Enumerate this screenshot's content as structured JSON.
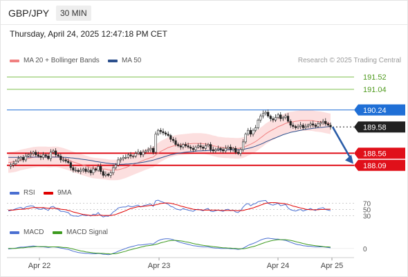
{
  "header": {
    "pair": "GBP/JPY",
    "timeframe": "30 MIN"
  },
  "timestamp": "Thursday, April 24, 2025 12:47:18 PM CET",
  "credit": "Research © 2025 Trading Central",
  "legend_main": [
    {
      "label": "MA 20 + Bollinger Bands",
      "color": "#f08080"
    },
    {
      "label": "MA 50",
      "color": "#2b4f8c"
    }
  ],
  "legend_rsi": [
    {
      "label": "RSI",
      "color": "#4a6fd1"
    },
    {
      "label": "9MA",
      "color": "#e00000"
    }
  ],
  "legend_macd": [
    {
      "label": "MACD",
      "color": "#4a6fd1"
    },
    {
      "label": "MACD Signal",
      "color": "#3c9a1e"
    }
  ],
  "chart_data": {
    "type": "candlestick",
    "instrument": "GBP/JPY",
    "interval": "30 MIN",
    "x_ticks": [
      "Apr 22",
      "Apr 23",
      "Apr 24",
      "Apr 25"
    ],
    "ylim": [
      187.6,
      191.9
    ],
    "current_price": 189.58,
    "levels": [
      {
        "value": 191.52,
        "label": "191.52",
        "kind": "resistance",
        "color": "#7bbf4a",
        "text_color": "#4f9a1e",
        "filled": false
      },
      {
        "value": 191.04,
        "label": "191.04",
        "kind": "resistance",
        "color": "#7bbf4a",
        "text_color": "#4f9a1e",
        "filled": false
      },
      {
        "value": 190.24,
        "label": "190.24",
        "kind": "pivot",
        "color": "#1f6fd6",
        "text_color": "#ffffff",
        "filled": true
      },
      {
        "value": 189.58,
        "label": "189.58",
        "kind": "last",
        "color": "#222222",
        "text_color": "#ffffff",
        "filled": true
      },
      {
        "value": 188.56,
        "label": "188.56",
        "kind": "support",
        "color": "#e0101a",
        "text_color": "#ffffff",
        "filled": true
      },
      {
        "value": 188.09,
        "label": "188.09",
        "kind": "support",
        "color": "#e0101a",
        "text_color": "#ffffff",
        "filled": true
      }
    ],
    "series": [
      {
        "name": "Price",
        "values": [
          188.05,
          188.1,
          188.15,
          188.25,
          188.35,
          188.4,
          188.3,
          188.45,
          188.5,
          188.55,
          188.6,
          188.5,
          188.45,
          188.4,
          188.5,
          188.45,
          188.35,
          188.6,
          188.65,
          188.5,
          188.45,
          188.3,
          188.3,
          188.25,
          188.2,
          188.0,
          187.9,
          187.9,
          187.85,
          187.9,
          187.95,
          187.85,
          187.9,
          187.8,
          187.95,
          187.9,
          188.05,
          187.85,
          187.7,
          187.75,
          187.7,
          187.8,
          188.0,
          188.1,
          188.3,
          188.35,
          188.4,
          188.4,
          188.5,
          188.45,
          188.45,
          188.55,
          188.6,
          188.5,
          188.6,
          188.65,
          188.7,
          188.75,
          188.6,
          189.3,
          189.45,
          189.4,
          189.35,
          189.3,
          189.25,
          189.1,
          189.05,
          188.9,
          188.85,
          188.8,
          188.9,
          188.85,
          188.8,
          188.75,
          188.7,
          188.8,
          188.85,
          188.8,
          188.75,
          188.85,
          188.9,
          188.7,
          188.65,
          188.7,
          188.75,
          188.7,
          188.65,
          188.75,
          188.8,
          188.7,
          188.75,
          188.6,
          188.55,
          188.7,
          189.0,
          189.3,
          189.45,
          189.3,
          189.45,
          189.55,
          189.85,
          190.0,
          190.1,
          190.15,
          190.0,
          189.9,
          189.85,
          189.95,
          190.05,
          189.9,
          189.95,
          190.0,
          189.8,
          189.65,
          189.6,
          189.55,
          189.6,
          189.65,
          189.55,
          189.6,
          189.65,
          189.7,
          189.65,
          189.6,
          189.7,
          189.75,
          189.8,
          189.7,
          189.65,
          189.58
        ]
      },
      {
        "name": "MA 20",
        "values": [
          188.2,
          188.21,
          188.22,
          188.24,
          188.27,
          188.3,
          188.32,
          188.34,
          188.36,
          188.38,
          188.4,
          188.41,
          188.42,
          188.42,
          188.42,
          188.42,
          188.41,
          188.41,
          188.42,
          188.42,
          188.41,
          188.39,
          188.36,
          188.33,
          188.3,
          188.26,
          188.22,
          188.19,
          188.16,
          188.13,
          188.1,
          188.07,
          188.04,
          188.01,
          187.99,
          187.98,
          187.97,
          187.96,
          187.95,
          187.94,
          187.92,
          187.91,
          187.91,
          187.91,
          187.92,
          187.94,
          187.97,
          188.0,
          188.04,
          188.08,
          188.12,
          188.16,
          188.2,
          188.24,
          188.28,
          188.32,
          188.35,
          188.39,
          188.41,
          188.49,
          188.56,
          188.63,
          188.68,
          188.73,
          188.78,
          188.81,
          188.84,
          188.86,
          188.88,
          188.89,
          188.9,
          188.91,
          188.92,
          188.93,
          188.94,
          188.94,
          188.94,
          188.94,
          188.93,
          188.92,
          188.9,
          188.88,
          188.85,
          188.83,
          188.8,
          188.79,
          188.78,
          188.77,
          188.77,
          188.76,
          188.76,
          188.75,
          188.75,
          188.76,
          188.78,
          188.82,
          188.87,
          188.91,
          188.96,
          189.01,
          189.08,
          189.16,
          189.23,
          189.31,
          189.37,
          189.43,
          189.48,
          189.53,
          189.59,
          189.63,
          189.67,
          189.72,
          189.75,
          189.77,
          189.78,
          189.8,
          189.81,
          189.83,
          189.83,
          189.83,
          189.83,
          189.83,
          189.82,
          189.8,
          189.79,
          189.78,
          189.76,
          189.74,
          189.72,
          189.7
        ]
      },
      {
        "name": "MA 50",
        "values": [
          188.4,
          188.4,
          188.4,
          188.4,
          188.4,
          188.4,
          188.4,
          188.4,
          188.41,
          188.41,
          188.41,
          188.41,
          188.41,
          188.41,
          188.41,
          188.41,
          188.41,
          188.41,
          188.41,
          188.41,
          188.41,
          188.41,
          188.4,
          188.4,
          188.39,
          188.38,
          188.37,
          188.36,
          188.35,
          188.33,
          188.32,
          188.31,
          188.29,
          188.28,
          188.26,
          188.24,
          188.23,
          188.21,
          188.2,
          188.18,
          188.17,
          188.16,
          188.15,
          188.14,
          188.14,
          188.13,
          188.13,
          188.14,
          188.14,
          188.15,
          188.16,
          188.17,
          188.18,
          188.2,
          188.21,
          188.23,
          188.25,
          188.27,
          188.29,
          188.32,
          188.35,
          188.38,
          188.41,
          188.44,
          188.47,
          188.5,
          188.52,
          188.54,
          188.56,
          188.57,
          188.59,
          188.6,
          188.61,
          188.62,
          188.63,
          188.64,
          188.65,
          188.65,
          188.66,
          188.66,
          188.67,
          188.67,
          188.67,
          188.68,
          188.68,
          188.68,
          188.68,
          188.68,
          188.69,
          188.69,
          188.69,
          188.69,
          188.69,
          188.7,
          188.71,
          188.73,
          188.75,
          188.77,
          188.8,
          188.83,
          188.87,
          188.91,
          188.95,
          189.0,
          189.04,
          189.08,
          189.12,
          189.16,
          189.2,
          189.24,
          189.28,
          189.31,
          189.34,
          189.37,
          189.39,
          189.41,
          189.43,
          189.45,
          189.47,
          189.48,
          189.5,
          189.51,
          189.53,
          189.54,
          189.55,
          189.56,
          189.57,
          189.58,
          189.59,
          189.6
        ]
      }
    ],
    "rsi": {
      "levels": [
        70,
        50,
        30
      ],
      "series": [
        {
          "name": "RSI",
          "values": [
            45,
            47,
            49,
            52,
            55,
            57,
            52,
            58,
            60,
            62,
            61,
            55,
            52,
            50,
            54,
            51,
            47,
            58,
            60,
            54,
            50,
            44,
            44,
            42,
            40,
            32,
            29,
            29,
            28,
            31,
            33,
            30,
            32,
            29,
            35,
            33,
            40,
            31,
            26,
            29,
            28,
            33,
            42,
            47,
            55,
            57,
            58,
            58,
            62,
            59,
            59,
            62,
            64,
            58,
            62,
            64,
            66,
            68,
            60,
            78,
            80,
            76,
            73,
            70,
            67,
            60,
            58,
            52,
            50,
            48,
            53,
            50,
            48,
            46,
            44,
            49,
            51,
            48,
            46,
            51,
            53,
            45,
            43,
            46,
            48,
            46,
            44,
            49,
            51,
            46,
            48,
            42,
            40,
            47,
            58,
            66,
            69,
            62,
            67,
            69,
            75,
            77,
            78,
            79,
            70,
            66,
            64,
            67,
            70,
            62,
            64,
            66,
            55,
            49,
            47,
            45,
            48,
            50,
            45,
            48,
            50,
            53,
            49,
            47,
            52,
            54,
            56,
            50,
            48,
            46
          ]
        },
        {
          "name": "9MA",
          "values": [
            48,
            48,
            48,
            49,
            50,
            51,
            51,
            52,
            53,
            55,
            56,
            56,
            56,
            56,
            56,
            55,
            54,
            54,
            54,
            54,
            53,
            51,
            50,
            49,
            47,
            45,
            42,
            40,
            38,
            36,
            34,
            33,
            32,
            31,
            31,
            31,
            32,
            32,
            31,
            31,
            31,
            31,
            32,
            34,
            37,
            40,
            43,
            46,
            50,
            53,
            55,
            57,
            59,
            59,
            60,
            61,
            62,
            63,
            63,
            65,
            67,
            69,
            70,
            71,
            71,
            70,
            68,
            66,
            64,
            61,
            59,
            57,
            55,
            53,
            51,
            50,
            49,
            49,
            48,
            48,
            48,
            48,
            48,
            48,
            48,
            47,
            47,
            47,
            47,
            47,
            47,
            46,
            46,
            46,
            47,
            49,
            51,
            53,
            55,
            58,
            61,
            64,
            67,
            70,
            71,
            72,
            72,
            72,
            71,
            70,
            69,
            68,
            66,
            64,
            61,
            59,
            57,
            55,
            53,
            51,
            50,
            49,
            49,
            49,
            49,
            50,
            50,
            51,
            51,
            51
          ]
        }
      ]
    },
    "macd": {
      "series": [
        {
          "name": "MACD",
          "values": [
            -0.02,
            -0.01,
            0.0,
            0.01,
            0.03,
            0.04,
            0.04,
            0.05,
            0.06,
            0.07,
            0.08,
            0.07,
            0.06,
            0.05,
            0.05,
            0.04,
            0.03,
            0.04,
            0.05,
            0.04,
            0.03,
            0.01,
            0.0,
            -0.02,
            -0.03,
            -0.06,
            -0.09,
            -0.11,
            -0.13,
            -0.14,
            -0.15,
            -0.16,
            -0.16,
            -0.17,
            -0.17,
            -0.17,
            -0.16,
            -0.17,
            -0.19,
            -0.19,
            -0.2,
            -0.19,
            -0.16,
            -0.13,
            -0.09,
            -0.06,
            -0.03,
            0.0,
            0.03,
            0.05,
            0.07,
            0.09,
            0.11,
            0.11,
            0.12,
            0.13,
            0.14,
            0.15,
            0.14,
            0.2,
            0.25,
            0.28,
            0.3,
            0.31,
            0.31,
            0.3,
            0.28,
            0.25,
            0.22,
            0.19,
            0.17,
            0.15,
            0.13,
            0.11,
            0.09,
            0.08,
            0.07,
            0.06,
            0.05,
            0.05,
            0.05,
            0.03,
            0.02,
            0.01,
            0.01,
            0.0,
            0.0,
            0.0,
            0.0,
            -0.01,
            -0.01,
            -0.02,
            -0.03,
            -0.02,
            0.01,
            0.05,
            0.1,
            0.13,
            0.16,
            0.19,
            0.23,
            0.27,
            0.3,
            0.32,
            0.33,
            0.32,
            0.31,
            0.3,
            0.3,
            0.28,
            0.27,
            0.26,
            0.23,
            0.2,
            0.17,
            0.14,
            0.12,
            0.11,
            0.09,
            0.08,
            0.07,
            0.07,
            0.06,
            0.05,
            0.05,
            0.05,
            0.05,
            0.04,
            0.03,
            0.02
          ]
        },
        {
          "name": "MACD Signal",
          "values": [
            0.0,
            0.0,
            0.0,
            0.0,
            0.01,
            0.02,
            0.02,
            0.03,
            0.04,
            0.04,
            0.05,
            0.06,
            0.06,
            0.06,
            0.06,
            0.06,
            0.05,
            0.05,
            0.05,
            0.05,
            0.05,
            0.04,
            0.03,
            0.03,
            0.02,
            0.0,
            -0.02,
            -0.04,
            -0.06,
            -0.08,
            -0.09,
            -0.11,
            -0.12,
            -0.13,
            -0.14,
            -0.15,
            -0.15,
            -0.16,
            -0.16,
            -0.17,
            -0.17,
            -0.18,
            -0.17,
            -0.17,
            -0.15,
            -0.13,
            -0.11,
            -0.09,
            -0.06,
            -0.04,
            -0.02,
            0.0,
            0.02,
            0.04,
            0.06,
            0.08,
            0.09,
            0.1,
            0.11,
            0.13,
            0.15,
            0.18,
            0.2,
            0.22,
            0.24,
            0.25,
            0.26,
            0.26,
            0.25,
            0.24,
            0.23,
            0.21,
            0.2,
            0.18,
            0.16,
            0.14,
            0.13,
            0.11,
            0.1,
            0.09,
            0.08,
            0.07,
            0.06,
            0.05,
            0.04,
            0.03,
            0.02,
            0.02,
            0.01,
            0.01,
            0.0,
            0.0,
            -0.01,
            -0.01,
            -0.01,
            0.0,
            0.02,
            0.04,
            0.06,
            0.08,
            0.11,
            0.14,
            0.17,
            0.2,
            0.22,
            0.24,
            0.26,
            0.27,
            0.28,
            0.28,
            0.28,
            0.28,
            0.27,
            0.26,
            0.24,
            0.22,
            0.2,
            0.18,
            0.16,
            0.14,
            0.12,
            0.11,
            0.1,
            0.09,
            0.08,
            0.07,
            0.06,
            0.05,
            0.05,
            0.04
          ]
        }
      ],
      "zero_label": "0"
    }
  }
}
